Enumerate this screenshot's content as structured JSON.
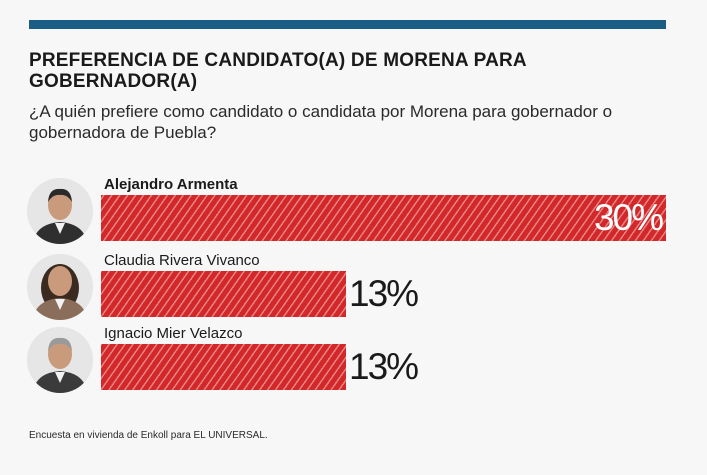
{
  "header": {
    "title": "PREFERENCIA DE CANDIDATO(A) DE MORENA PARA GOBERNADOR(A)",
    "subtitle": "¿A quién prefiere como candidato o candidata por Morena para gobernador o gobernadora de Puebla?"
  },
  "colors": {
    "accent_rule": "#1c5d86",
    "bar": "#d3282a"
  },
  "chart_data": {
    "type": "bar",
    "orientation": "horizontal",
    "categories": [
      "Alejandro Armenta",
      "Claudia Rivera Vivanco",
      "Ignacio Mier Velazco"
    ],
    "values": [
      30,
      13,
      13
    ],
    "value_labels": [
      "30%",
      "13%",
      "13%"
    ],
    "unit": "%",
    "xlim": [
      0,
      30
    ],
    "grid": false,
    "legend": "none"
  },
  "footnote": "Encuesta en vivienda de Enkoll para EL UNIVERSAL."
}
